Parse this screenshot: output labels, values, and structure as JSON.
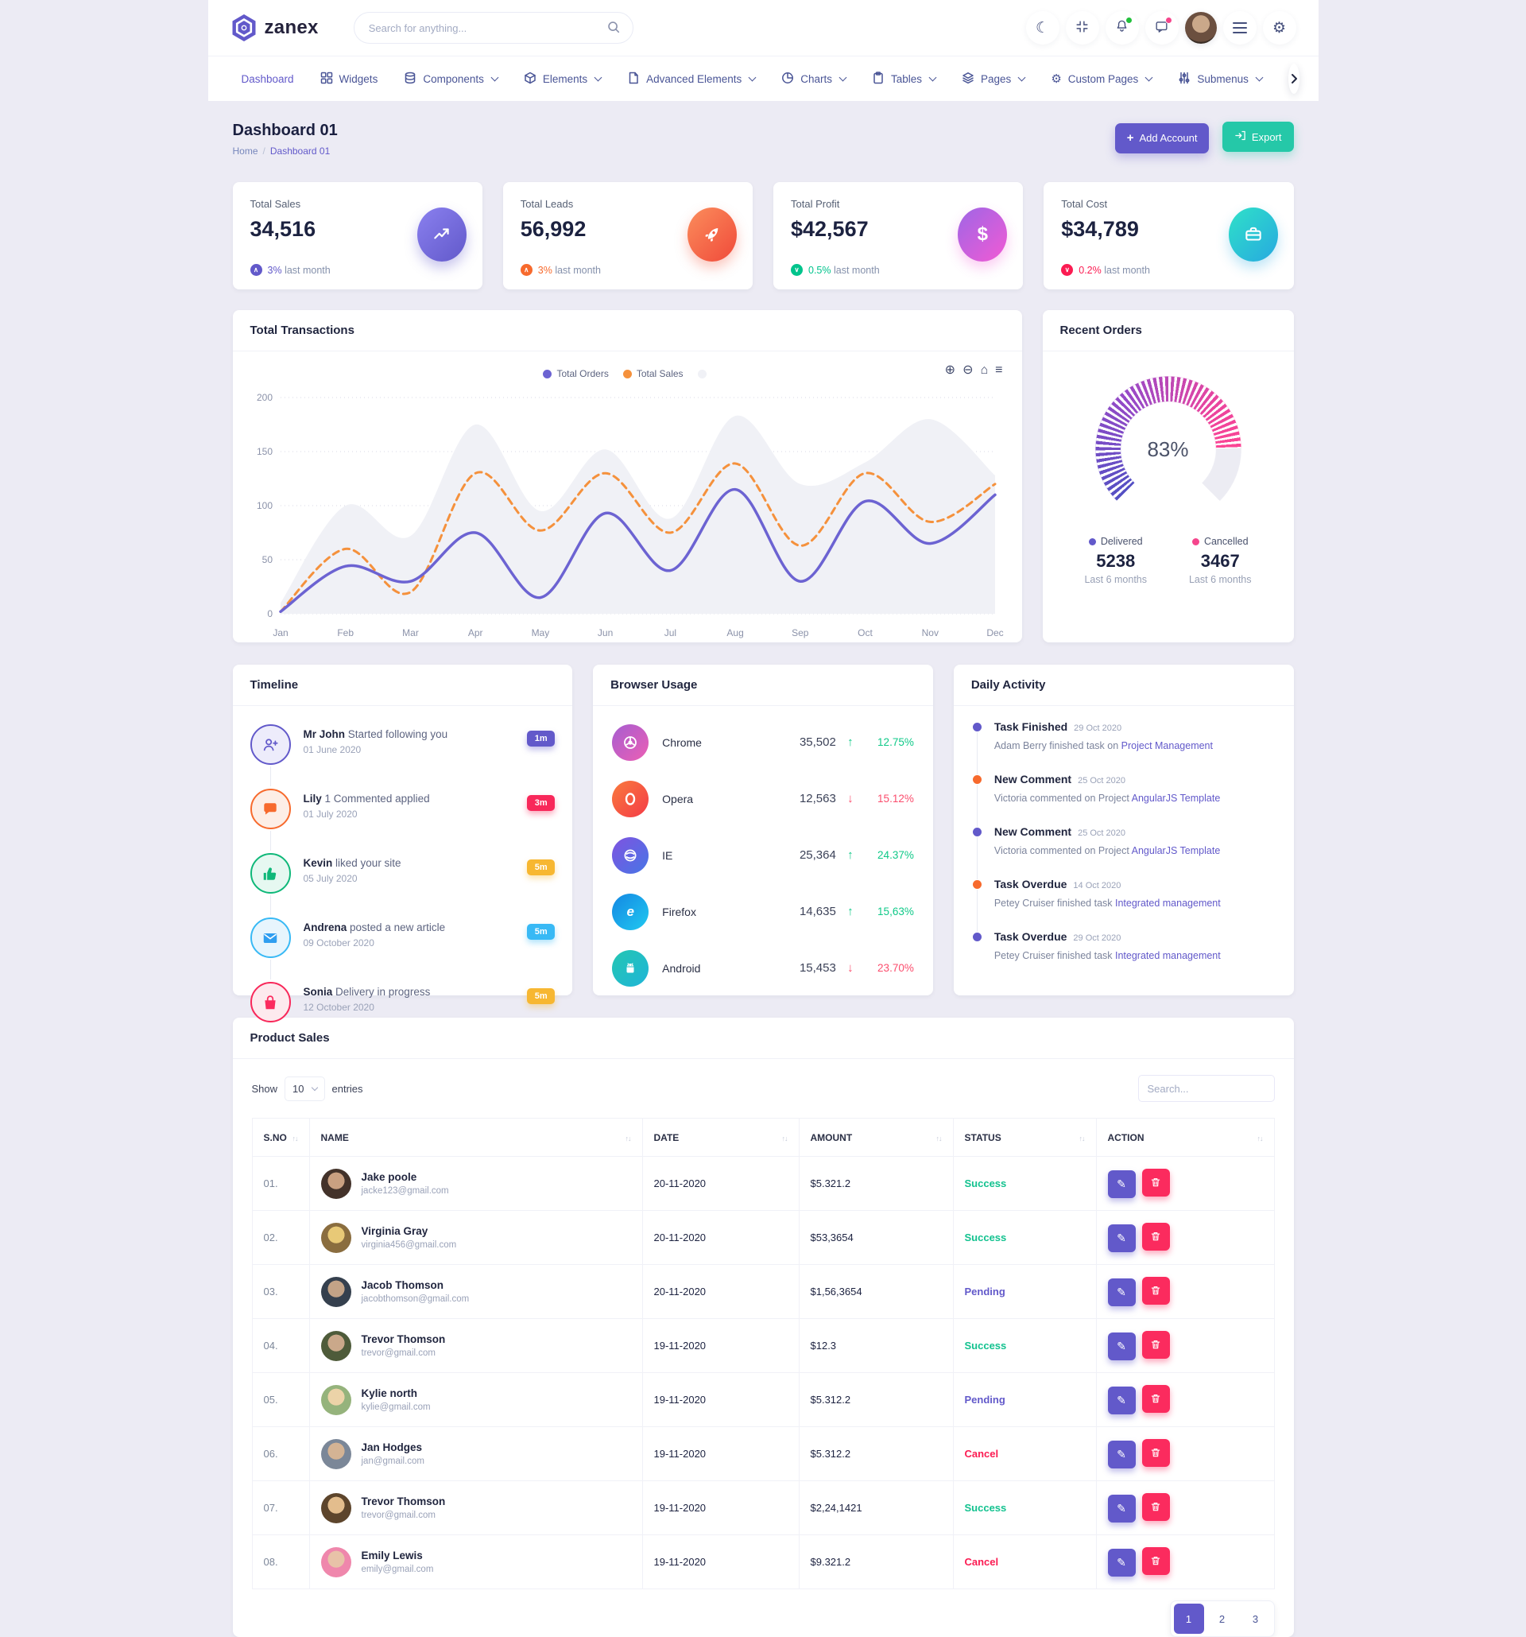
{
  "header": {
    "logo_text": "zanex",
    "search_placeholder": "Search for anything...",
    "icons": {
      "dark_mode": "moon-icon",
      "fullscreen": "fullscreen-icon",
      "notifications": "bell-icon",
      "messages": "chat-icon",
      "profile": "avatar",
      "menu": "hamburger-icon",
      "settings": "gear-icon",
      "search": "search-icon"
    }
  },
  "nav": {
    "items": [
      {
        "label": "Dashboard",
        "active": true
      },
      {
        "label": "Widgets",
        "icon": "widgets-grid-icon"
      },
      {
        "label": "Components",
        "icon": "database-icon",
        "chevron": true
      },
      {
        "label": "Elements",
        "icon": "package-icon",
        "chevron": true
      },
      {
        "label": "Advanced Elements",
        "icon": "file-icon",
        "chevron": true
      },
      {
        "label": "Charts",
        "icon": "pie-chart-icon",
        "chevron": true
      },
      {
        "label": "Tables",
        "icon": "clipboard-icon",
        "chevron": true
      },
      {
        "label": "Pages",
        "icon": "layers-icon",
        "chevron": true
      },
      {
        "label": "Custom Pages",
        "icon": "gear-icon",
        "chevron": true
      },
      {
        "label": "Submenus",
        "icon": "sliders-icon",
        "chevron": true
      }
    ]
  },
  "page": {
    "title": "Dashboard 01",
    "breadcrumb": [
      "Home",
      "Dashboard 01"
    ],
    "add_account_label": "Add Account",
    "export_label": "Export"
  },
  "stats": [
    {
      "label": "Total Sales",
      "value": "34,516",
      "change": "3%",
      "note": "last month",
      "trend": "up",
      "icon": "trend-up-icon",
      "accent": "#6259ca"
    },
    {
      "label": "Total Leads",
      "value": "56,992",
      "change": "3%",
      "note": "last month",
      "trend": "up",
      "icon": "rocket-icon",
      "accent": "#f76a2d"
    },
    {
      "label": "Total Profit",
      "value": "$42,567",
      "change": "0.5%",
      "note": "last month",
      "trend": "down",
      "icon": "dollar-icon",
      "accent": "#00c48c"
    },
    {
      "label": "Total Cost",
      "value": "$34,789",
      "change": "0.2%",
      "note": "last month",
      "trend": "down",
      "icon": "briefcase-icon",
      "accent": "#fb1c52"
    }
  ],
  "transactions": {
    "title": "Total Transactions",
    "toolbar": [
      "zoom-in-icon",
      "zoom-out-icon",
      "home-icon",
      "menu-icon"
    ]
  },
  "chart_data": {
    "type": "line",
    "title": "Total Transactions",
    "categories": [
      "Jan",
      "Feb",
      "Mar",
      "Apr",
      "May",
      "Jun",
      "Jul",
      "Aug",
      "Sep",
      "Oct",
      "Nov",
      "Dec"
    ],
    "series": [
      {
        "name": "Total Orders",
        "style": "solid",
        "color": "#6c63d2",
        "values": [
          2,
          44,
          30,
          75,
          15,
          93,
          40,
          115,
          30,
          104,
          65,
          110
        ]
      },
      {
        "name": "Total Sales",
        "style": "dashed",
        "color": "#f5913c",
        "values": [
          2,
          60,
          20,
          130,
          77,
          130,
          75,
          139,
          63,
          130,
          85,
          120
        ]
      },
      {
        "name": "",
        "style": "area",
        "color": "#f0f1f6",
        "values": [
          10,
          100,
          72,
          175,
          95,
          152,
          88,
          183,
          120,
          140,
          180,
          128
        ]
      }
    ],
    "ylim": [
      0,
      200
    ],
    "yticks": [
      0,
      50,
      100,
      150,
      200
    ],
    "grid": "dotted-horizontal",
    "legend_position": "top-center"
  },
  "recent_orders": {
    "title": "Recent Orders",
    "percent": "83%",
    "delivered": {
      "label": "Delivered",
      "value": "5238",
      "period": "Last 6 months",
      "color": "#6259ca"
    },
    "cancelled": {
      "label": "Cancelled",
      "value": "3467",
      "period": "Last 6 months",
      "color": "#f5458c"
    }
  },
  "timeline": {
    "title": "Timeline",
    "items": [
      {
        "name": "Mr John",
        "action": "Started following you",
        "date": "01 June 2020",
        "badge": "1m",
        "icon": "user-add-icon"
      },
      {
        "name": "Lily",
        "action": "1 Commented applied",
        "date": "01 July 2020",
        "badge": "3m",
        "icon": "comment-icon"
      },
      {
        "name": "Kevin",
        "action": "liked your site",
        "date": "05 July 2020",
        "badge": "5m",
        "icon": "thumbs-up-icon"
      },
      {
        "name": "Andrena",
        "action": "posted a new article",
        "date": "09 October 2020",
        "badge": "5m",
        "icon": "envelope-icon"
      },
      {
        "name": "Sonia",
        "action": "Delivery in progress",
        "date": "12 October 2020",
        "badge": "5m",
        "icon": "shopping-bag-icon"
      }
    ]
  },
  "browser_usage": {
    "title": "Browser Usage",
    "rows": [
      {
        "name": "Chrome",
        "value": "35,502",
        "percent": "12.75%",
        "direction": "up",
        "icon": "chrome-icon"
      },
      {
        "name": "Opera",
        "value": "12,563",
        "percent": "15.12%",
        "direction": "down",
        "icon": "opera-icon"
      },
      {
        "name": "IE",
        "value": "25,364",
        "percent": "24.37%",
        "direction": "up",
        "icon": "ie-icon"
      },
      {
        "name": "Firefox",
        "value": "14,635",
        "percent": "15,63%",
        "direction": "up",
        "icon": "firefox-icon"
      },
      {
        "name": "Android",
        "value": "15,453",
        "percent": "23.70%",
        "direction": "down",
        "icon": "android-icon"
      }
    ]
  },
  "daily_activity": {
    "title": "Daily Activity",
    "items": [
      {
        "title": "Task Finished",
        "date": "29 Oct 2020",
        "text": "Adam Berry finished task on ",
        "link": "Project Management",
        "dot": "purple"
      },
      {
        "title": "New Comment",
        "date": "25 Oct 2020",
        "text": "Victoria commented on Project ",
        "link": "AngularJS Template",
        "dot": "orange"
      },
      {
        "title": "New Comment",
        "date": "25 Oct 2020",
        "text": "Victoria commented on Project ",
        "link": "AngularJS Template",
        "dot": "purple"
      },
      {
        "title": "Task Overdue",
        "date": "14 Oct 2020",
        "text": "Petey Cruiser finished task ",
        "link": "Integrated management",
        "dot": "orange"
      },
      {
        "title": "Task Overdue",
        "date": "29 Oct 2020",
        "text": "Petey Cruiser finished task ",
        "link": "Integrated management",
        "dot": "purple"
      }
    ]
  },
  "product_sales": {
    "title": "Product Sales",
    "show_label": "Show",
    "page_size": "10",
    "entries_label": "entries",
    "search_placeholder": "Search...",
    "columns": [
      "S.NO",
      "NAME",
      "DATE",
      "AMOUNT",
      "STATUS",
      "ACTION"
    ],
    "rows": [
      {
        "sno": "01.",
        "name": "Jake poole",
        "email": "jacke123@gmail.com",
        "date": "20-11-2020",
        "amount": "$5.321.2",
        "status": "Success"
      },
      {
        "sno": "02.",
        "name": "Virginia Gray",
        "email": "virginia456@gmail.com",
        "date": "20-11-2020",
        "amount": "$53,3654",
        "status": "Success"
      },
      {
        "sno": "03.",
        "name": "Jacob Thomson",
        "email": "jacobthomson@gmail.com",
        "date": "20-11-2020",
        "amount": "$1,56,3654",
        "status": "Pending"
      },
      {
        "sno": "04.",
        "name": "Trevor Thomson",
        "email": "trevor@gmail.com",
        "date": "19-11-2020",
        "amount": "$12.3",
        "status": "Success"
      },
      {
        "sno": "05.",
        "name": "Kylie north",
        "email": "kylie@gmail.com",
        "date": "19-11-2020",
        "amount": "$5.312.2",
        "status": "Pending"
      },
      {
        "sno": "06.",
        "name": "Jan Hodges",
        "email": "jan@gmail.com",
        "date": "19-11-2020",
        "amount": "$5.312.2",
        "status": "Cancel"
      },
      {
        "sno": "07.",
        "name": "Trevor Thomson",
        "email": "trevor@gmail.com",
        "date": "19-11-2020",
        "amount": "$2,24,1421",
        "status": "Success"
      },
      {
        "sno": "08.",
        "name": "Emily Lewis",
        "email": "emily@gmail.com",
        "date": "19-11-2020",
        "amount": "$9.321.2",
        "status": "Cancel"
      }
    ]
  }
}
